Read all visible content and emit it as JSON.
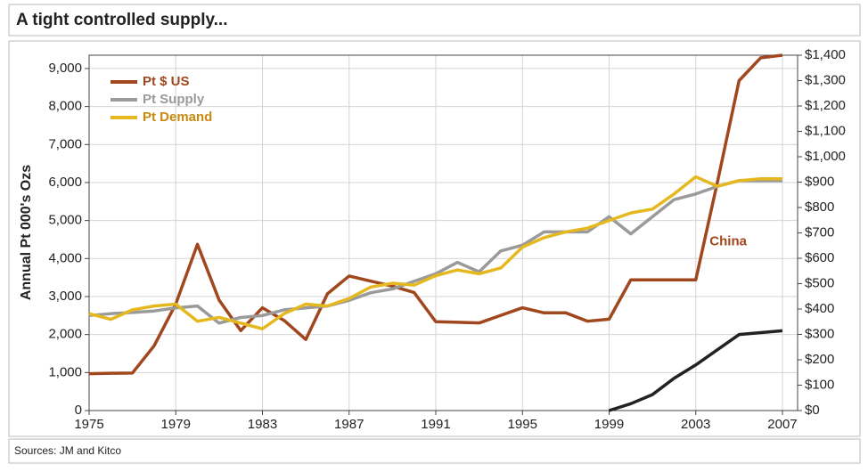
{
  "chart_data": {
    "type": "line",
    "title": "A tight controlled supply...",
    "y_label": "Annual Pt 000's Ozs",
    "source": "Sources: JM and Kitco",
    "xlim": [
      1975,
      2007.7
    ],
    "xticks": [
      1975,
      1979,
      1983,
      1987,
      1991,
      1995,
      1999,
      2003,
      2007
    ],
    "ylim": [
      0,
      9350
    ],
    "yticks": [
      0,
      {
        "value": 1000,
        "label": "1,000"
      },
      {
        "value": 2000,
        "label": "2,000"
      },
      {
        "value": 3000,
        "label": "3,000"
      },
      {
        "value": 4000,
        "label": "4,000"
      },
      {
        "value": 5000,
        "label": "5,000"
      },
      {
        "value": 6000,
        "label": "6,000"
      },
      {
        "value": 7000,
        "label": "7,000"
      },
      {
        "value": 8000,
        "label": "8,000"
      },
      {
        "value": 9000,
        "label": "9,000"
      }
    ],
    "y2lim": [
      0,
      1400
    ],
    "y2ticks": [
      {
        "value": 0,
        "label": "$0"
      },
      {
        "value": 100,
        "label": "$100"
      },
      {
        "value": 200,
        "label": "$200"
      },
      {
        "value": 300,
        "label": "$300"
      },
      {
        "value": 400,
        "label": "$400"
      },
      {
        "value": 500,
        "label": "$500"
      },
      {
        "value": 600,
        "label": "$600"
      },
      {
        "value": 700,
        "label": "$700"
      },
      {
        "value": 800,
        "label": "$800"
      },
      {
        "value": 900,
        "label": "$900"
      },
      {
        "value": 1000,
        "label": "$1,000"
      },
      {
        "value": 1100,
        "label": "$1,100"
      },
      {
        "value": 1200,
        "label": "$1,200"
      },
      {
        "value": 1300,
        "label": "$1,300"
      },
      {
        "value": 1400,
        "label": "$1,400"
      }
    ],
    "grid": true,
    "legend": "top-left",
    "series": [
      {
        "name": "Pt $ US",
        "color": "#a0471e",
        "axis": "y2",
        "x": [
          1975,
          1976,
          1977,
          1978,
          1979,
          1980,
          1981,
          1982,
          1983,
          1984,
          1985,
          1986,
          1987,
          1988,
          1989,
          1990,
          1991,
          1992,
          1993,
          1994,
          1995,
          1996,
          1997,
          1998,
          1999,
          2000,
          2001,
          2002,
          2003,
          2004,
          2005,
          2006,
          2007
        ],
        "values": [
          145,
          147,
          148,
          255,
          420,
          655,
          435,
          315,
          405,
          355,
          280,
          460,
          530,
          510,
          490,
          465,
          350,
          348,
          345,
          375,
          405,
          385,
          385,
          352,
          360,
          515,
          515,
          515,
          515,
          900,
          1300,
          1390,
          1400
        ]
      },
      {
        "name": "Pt Supply",
        "color": "#9a9a9a",
        "x": [
          1975,
          1976,
          1977,
          1978,
          1979,
          1980,
          1981,
          1982,
          1983,
          1984,
          1985,
          1986,
          1987,
          1988,
          1989,
          1990,
          1991,
          1992,
          1993,
          1994,
          1995,
          1996,
          1997,
          1998,
          1999,
          2000,
          2001,
          2002,
          2003,
          2004,
          2005,
          2006,
          2007
        ],
        "values": [
          2500,
          2550,
          2580,
          2620,
          2700,
          2750,
          2300,
          2450,
          2500,
          2650,
          2700,
          2750,
          2900,
          3100,
          3200,
          3400,
          3600,
          3900,
          3650,
          4200,
          4350,
          4700,
          4700,
          4700,
          5100,
          4650,
          5100,
          5550,
          5700,
          5900,
          6050,
          6050,
          6050
        ]
      },
      {
        "name": "Pt Demand",
        "color": "#e6b820",
        "x": [
          1975,
          1976,
          1977,
          1978,
          1979,
          1980,
          1981,
          1982,
          1983,
          1984,
          1985,
          1986,
          1987,
          1988,
          1989,
          1990,
          1991,
          1992,
          1993,
          1994,
          1995,
          1996,
          1997,
          1998,
          1999,
          2000,
          2001,
          2002,
          2003,
          2004,
          2005,
          2006,
          2007
        ],
        "values": [
          2550,
          2400,
          2650,
          2750,
          2800,
          2350,
          2450,
          2300,
          2150,
          2550,
          2800,
          2750,
          2950,
          3250,
          3350,
          3300,
          3550,
          3700,
          3600,
          3750,
          4300,
          4550,
          4700,
          4800,
          5000,
          5200,
          5300,
          5700,
          6150,
          5900,
          6050,
          6100,
          6100
        ]
      },
      {
        "name": "China",
        "color": "#222222",
        "legend": false,
        "label_color": "#a0471e",
        "x": [
          1999,
          2000,
          2001,
          2002,
          2003,
          2004,
          2005,
          2006,
          2007
        ],
        "values": [
          0,
          180,
          420,
          850,
          1200,
          1600,
          2000,
          2050,
          2100
        ]
      }
    ]
  }
}
